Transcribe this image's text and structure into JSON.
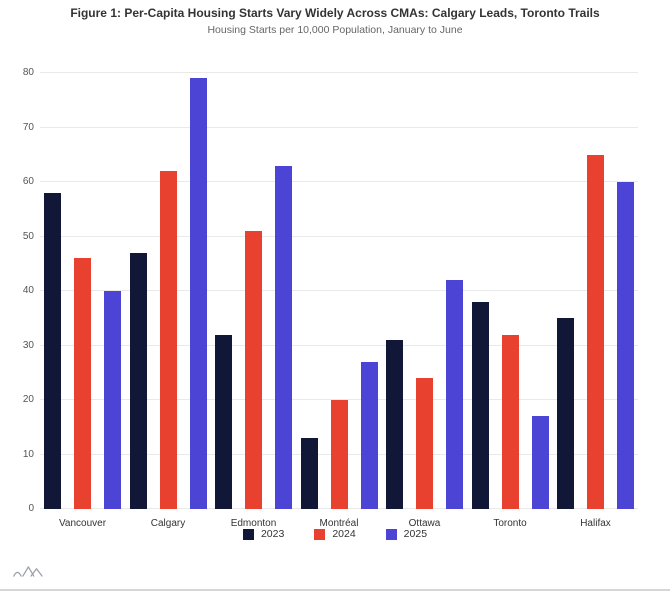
{
  "chart_data": {
    "type": "bar",
    "title": "Figure 1: Per-Capita Housing Starts Vary Widely Across CMAs: Calgary Leads, Toronto Trails",
    "subtitle": "Housing Starts per 10,000 Population, January to June",
    "categories": [
      "Vancouver",
      "Calgary",
      "Edmonton",
      "Montréal",
      "Ottawa",
      "Toronto",
      "Halifax"
    ],
    "series": [
      {
        "name": "2023",
        "color": "#101737",
        "values": [
          58,
          47,
          32,
          13,
          31,
          38,
          35
        ]
      },
      {
        "name": "2024",
        "color": "#e8412f",
        "values": [
          46,
          62,
          51,
          20,
          24,
          32,
          65
        ]
      },
      {
        "name": "2025",
        "color": "#4b44d4",
        "values": [
          40,
          79,
          63,
          27,
          42,
          17,
          60
        ]
      }
    ],
    "ylim": [
      0,
      80
    ],
    "ytick_step": 10,
    "grid": true,
    "legend_position": "bottom",
    "xlabel": "",
    "ylabel": ""
  }
}
